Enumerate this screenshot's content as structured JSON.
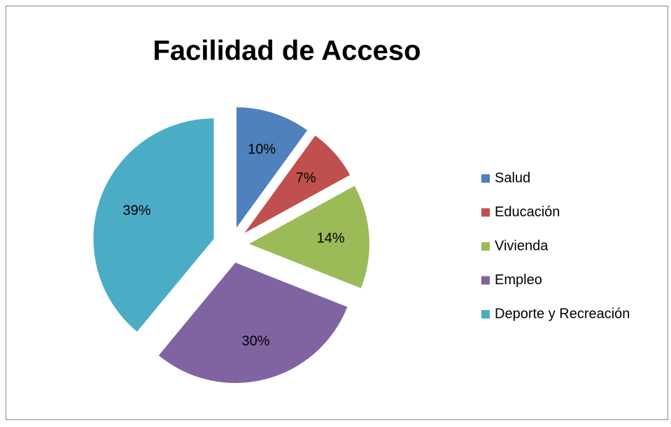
{
  "chart_data": {
    "type": "pie",
    "title": "Facilidad de Acceso",
    "categories": [
      "Salud",
      "Educación",
      "Vivienda",
      "Empleo",
      "Deporte y Recreación"
    ],
    "values": [
      10,
      7,
      14,
      30,
      39
    ],
    "value_labels": [
      "10%",
      "7%",
      "14%",
      "30%",
      "39%"
    ],
    "colors": [
      "#4f81bd",
      "#c0504d",
      "#9bbb59",
      "#8064a2",
      "#4bacc6"
    ],
    "legend": "right",
    "exploded": true
  }
}
